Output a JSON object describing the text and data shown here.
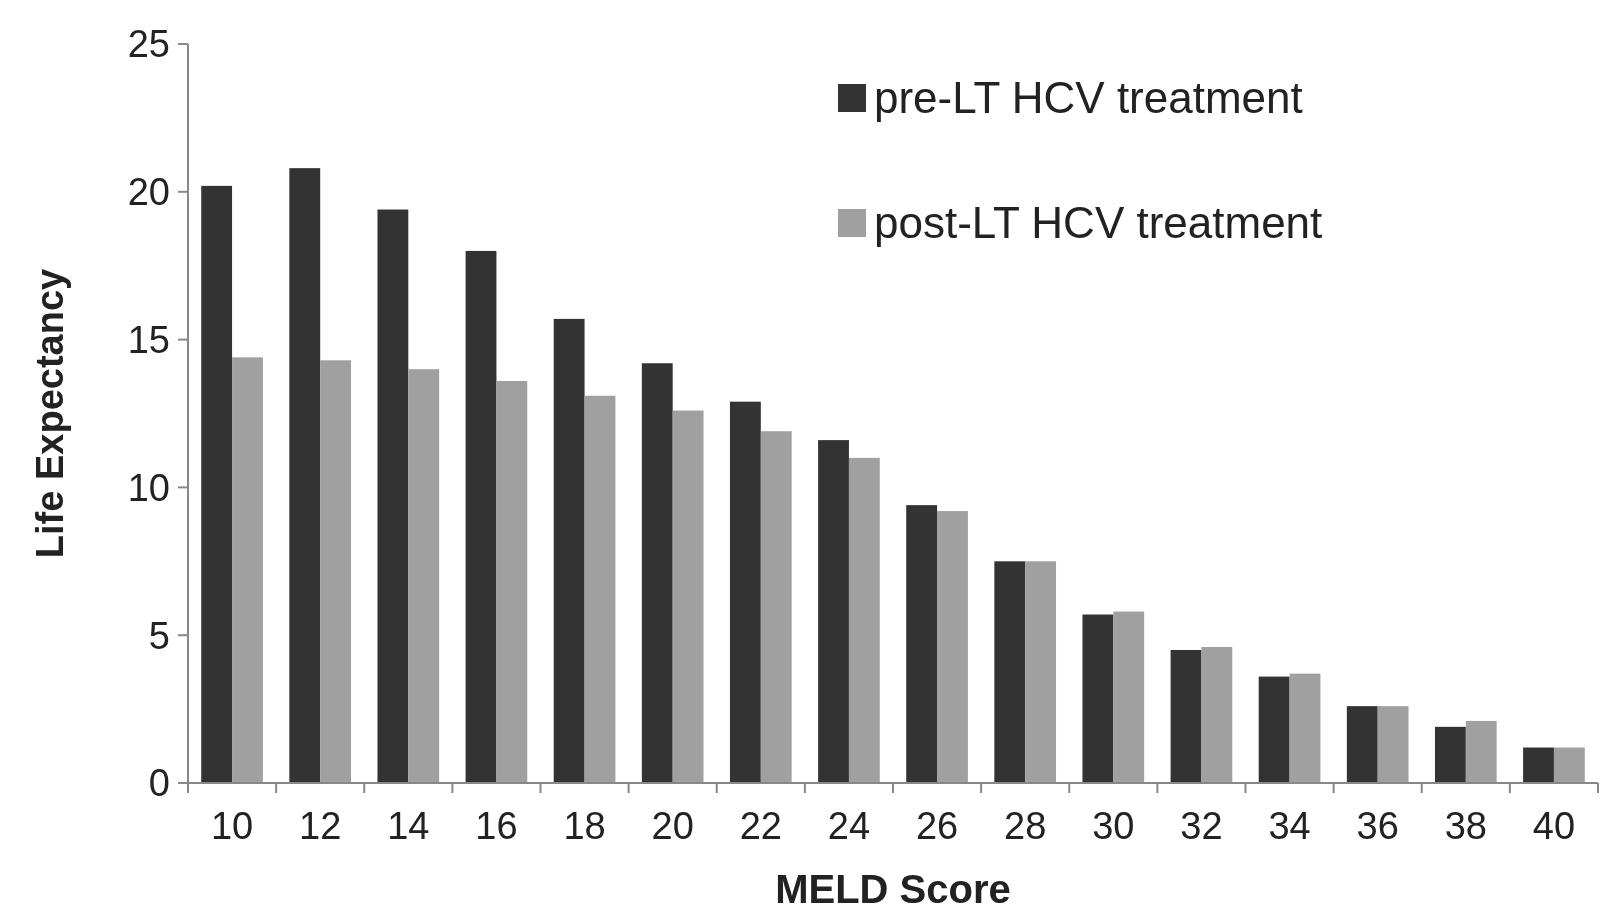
{
  "chart_data": {
    "type": "bar",
    "xlabel": "MELD Score",
    "ylabel": "Life Expectancy",
    "categories": [
      "10",
      "12",
      "14",
      "16",
      "18",
      "20",
      "22",
      "24",
      "26",
      "28",
      "30",
      "32",
      "34",
      "36",
      "38",
      "40"
    ],
    "series": [
      {
        "name": "pre-LT HCV treatment",
        "color": "#333333",
        "values": [
          20.2,
          20.8,
          19.4,
          18.0,
          15.7,
          14.2,
          12.9,
          11.6,
          9.4,
          7.5,
          5.7,
          4.5,
          3.6,
          2.6,
          1.9,
          1.2
        ]
      },
      {
        "name": "post-LT HCV treatment",
        "color": "#a0a0a0",
        "values": [
          14.4,
          14.3,
          14.0,
          13.6,
          13.1,
          12.6,
          11.9,
          11.0,
          9.2,
          7.5,
          5.8,
          4.6,
          3.7,
          2.6,
          2.1,
          1.2
        ]
      }
    ],
    "ylim": [
      0,
      25
    ],
    "yticks": [
      0,
      5,
      10,
      15,
      20,
      25
    ],
    "grid": false,
    "legend": "top right"
  }
}
